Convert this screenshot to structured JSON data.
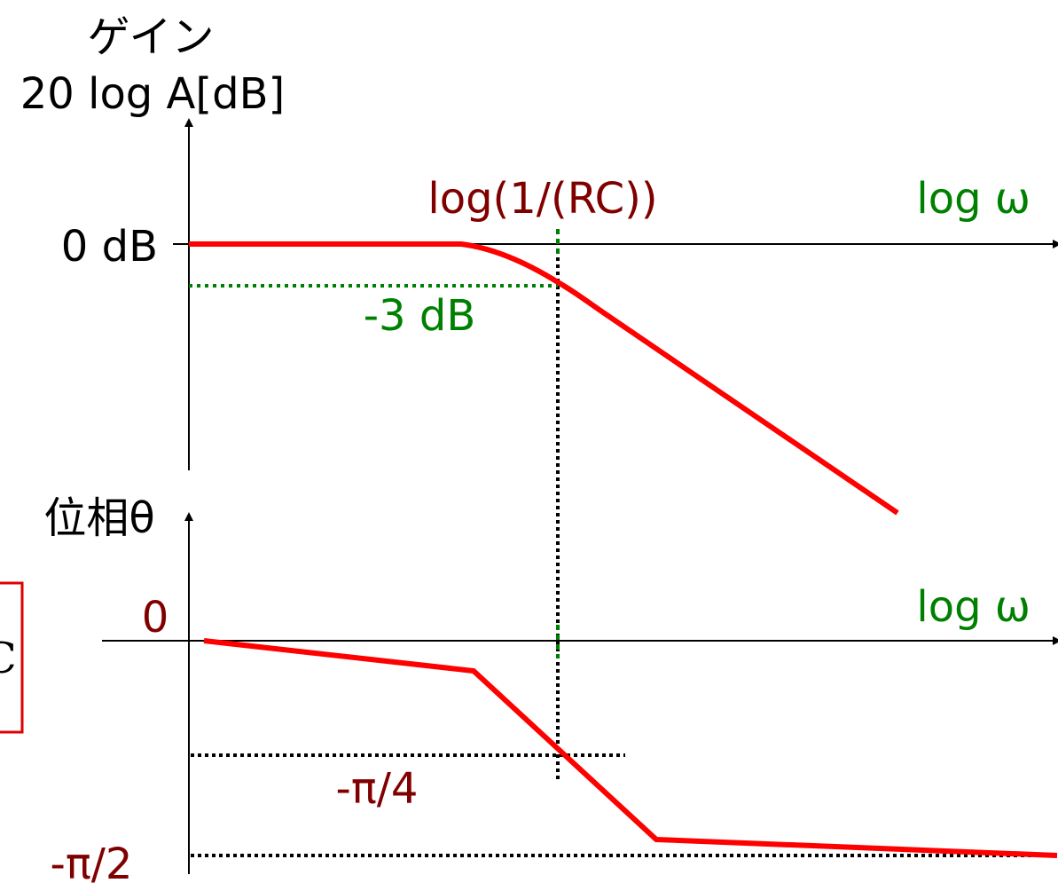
{
  "gain": {
    "title_line1": "ゲイン",
    "title_line2": "20 log A[dB]",
    "zero_label": "0 dB",
    "corner_label": "log(1/(RC))",
    "x_label": "log ω",
    "minus3_label": "-3 dB"
  },
  "phase": {
    "title": "位相θ",
    "zero_label": "0",
    "x_label": "log ω",
    "quarter_label": "-π/4",
    "half_label": "-π/2"
  },
  "left_box": {
    "text": "C"
  },
  "colors": {
    "curve": "#ff0000",
    "guide_green": "#008000",
    "label_dark_red": "#800000",
    "axis": "#000000",
    "box": "#e00000"
  }
}
